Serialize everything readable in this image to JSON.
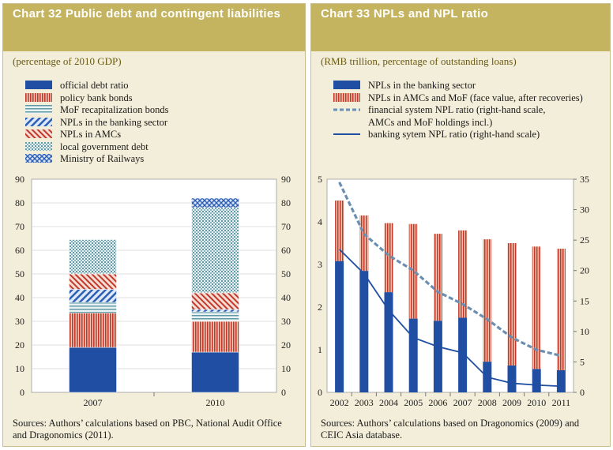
{
  "left": {
    "title": "Chart 32 Public debt and contingent liabilities",
    "subtitle": "(percentage of 2010 GDP)",
    "legend": [
      "official debt ratio",
      "policy bank bonds",
      "MoF recapitalization bonds",
      "NPLs in the banking sector",
      "NPLs in AMCs",
      "local government debt",
      "Ministry of Railways"
    ],
    "sources": "Sources: Authors’ calculations based on PBC, National Audit Office and Dragonomics (2011)."
  },
  "right": {
    "title": "Chart 33 NPLs and NPL ratio",
    "subtitle": "(RMB trillion, percentage of outstanding loans)",
    "legend": [
      "NPLs in the banking sector",
      "NPLs in AMCs and MoF (face value, after recoveries)",
      "financial system NPL ratio (right-hand scale,",
      "AMCs and MoF holdings incl.)",
      "banking sytem NPL ratio (right-hand scale)"
    ],
    "sources": "Sources: Authors’ calculations based on Dragonomics (2009) and CEIC Asia database."
  },
  "colors": {
    "title_bar": "#c4b35f",
    "panel_bg": "#f3eed9",
    "navy": "#1f4ea3",
    "red": "#c0392b",
    "teal": "#5f9aa6",
    "slate": "#6b8fb0",
    "subtitle": "#6b5a12"
  },
  "chart_data": [
    {
      "type": "bar",
      "stacked": true,
      "categories": [
        "2007",
        "2010"
      ],
      "series": [
        {
          "name": "official debt ratio",
          "values": [
            19,
            17
          ]
        },
        {
          "name": "policy bank bonds",
          "values": [
            14.5,
            13
          ]
        },
        {
          "name": "MoF recapitalization bonds",
          "values": [
            4.5,
            4
          ]
        },
        {
          "name": "NPLs in the banking sector",
          "values": [
            5.5,
            1
          ]
        },
        {
          "name": "NPLs in AMCs",
          "values": [
            6.5,
            7
          ]
        },
        {
          "name": "local government debt",
          "values": [
            14.5,
            36
          ]
        },
        {
          "name": "Ministry of Railways",
          "values": [
            0,
            4
          ]
        }
      ],
      "ylim": [
        0,
        90
      ],
      "yticks": [
        0,
        10,
        20,
        30,
        40,
        50,
        60,
        70,
        80,
        90
      ],
      "right_axis_mirrors_left": true
    },
    {
      "type": "bar",
      "stacked": true,
      "categories": [
        "2002",
        "2003",
        "2004",
        "2005",
        "2006",
        "2007",
        "2008",
        "2009",
        "2010",
        "2011"
      ],
      "series": [
        {
          "name": "NPLs in the banking sector",
          "values": [
            3.08,
            2.85,
            2.35,
            1.73,
            1.68,
            1.75,
            0.72,
            0.63,
            0.55,
            0.52
          ]
        },
        {
          "name": "NPLs in AMCs and MoF (face value, after recoveries)",
          "values": [
            1.42,
            1.3,
            1.62,
            2.22,
            2.04,
            2.05,
            2.87,
            2.87,
            2.87,
            2.85
          ]
        }
      ],
      "lines": [
        {
          "name": "financial system NPL ratio (right-hand scale, AMCs and MoF holdings incl.)",
          "style": "dashed",
          "axis": "right",
          "values": [
            34.5,
            26,
            22.5,
            20,
            16.5,
            14.5,
            12,
            9,
            7,
            6
          ]
        },
        {
          "name": "banking sytem NPL ratio (right-hand scale)",
          "style": "solid",
          "axis": "right",
          "values": [
            23.5,
            19.5,
            13.5,
            9,
            7.5,
            6.5,
            2.5,
            1.5,
            1.2,
            1
          ]
        }
      ],
      "ylim": [
        0,
        5
      ],
      "yticks": [
        0,
        1,
        2,
        3,
        4,
        5
      ],
      "y2lim": [
        0,
        35
      ],
      "y2ticks": [
        0,
        5,
        10,
        15,
        20,
        25,
        30,
        35
      ]
    }
  ]
}
